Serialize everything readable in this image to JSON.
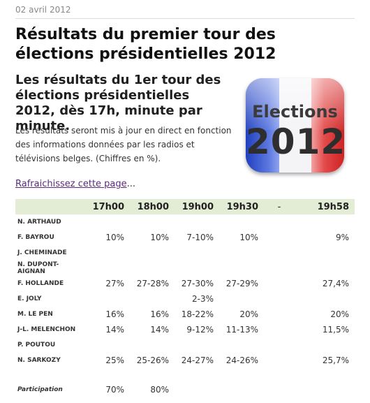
{
  "date": "02 avril 2012",
  "title": "Résultats du premier tour des élections présidentielles 2012",
  "subtitle": "Les résultats du 1er tour des élections présidentielles 2012, dès 17h, minute par minute.",
  "intro": "Les résultats seront mis à jour en direct en fonction des informations données par les radios et télévisions belges. (Chiffres en %).",
  "logo": {
    "word": "Elections",
    "year": "2012",
    "colors": [
      "#1f3fbf",
      "#f4f4f7",
      "#cf2323"
    ]
  },
  "refresh": {
    "link": "Rafraichissez cette page",
    "suffix": "..."
  },
  "table": {
    "columns": [
      "17h00",
      "18h00",
      "19h00",
      "19h30",
      "-",
      "19h58"
    ],
    "rows": [
      {
        "name": "N. ARTHAUD",
        "values": [
          "",
          "",
          "",
          "",
          "",
          ""
        ]
      },
      {
        "name": "F. BAYROU",
        "values": [
          "10%",
          "10%",
          "7-10%",
          "10%",
          "",
          "9%"
        ]
      },
      {
        "name": "J. CHEMINADE",
        "values": [
          "",
          "",
          "",
          "",
          "",
          ""
        ]
      },
      {
        "name": "N. DUPONT-AIGNAN",
        "values": [
          "",
          "",
          "",
          "",
          "",
          ""
        ]
      },
      {
        "name": "F. HOLLANDE",
        "values": [
          "27%",
          "27-28%",
          "27-30%",
          "27-29%",
          "",
          "27,4%"
        ]
      },
      {
        "name": "E. JOLY",
        "values": [
          "",
          "",
          "2-3%",
          "",
          "",
          ""
        ]
      },
      {
        "name": "M. LE PEN",
        "values": [
          "16%",
          "16%",
          "18-22%",
          "20%",
          "",
          "20%"
        ]
      },
      {
        "name": "J-L. MELENCHON",
        "values": [
          "14%",
          "14%",
          "9-12%",
          "11-13%",
          "",
          "11,5%"
        ]
      },
      {
        "name": "P. POUTOU",
        "values": [
          "",
          "",
          "",
          "",
          "",
          ""
        ]
      },
      {
        "name": "N. SARKOZY",
        "values": [
          "25%",
          "25-26%",
          "24-27%",
          "24-26%",
          "",
          "25,7%"
        ]
      }
    ],
    "participation": {
      "name": "Participation",
      "values": [
        "70%",
        "80%",
        "",
        "",
        "",
        ""
      ]
    }
  }
}
